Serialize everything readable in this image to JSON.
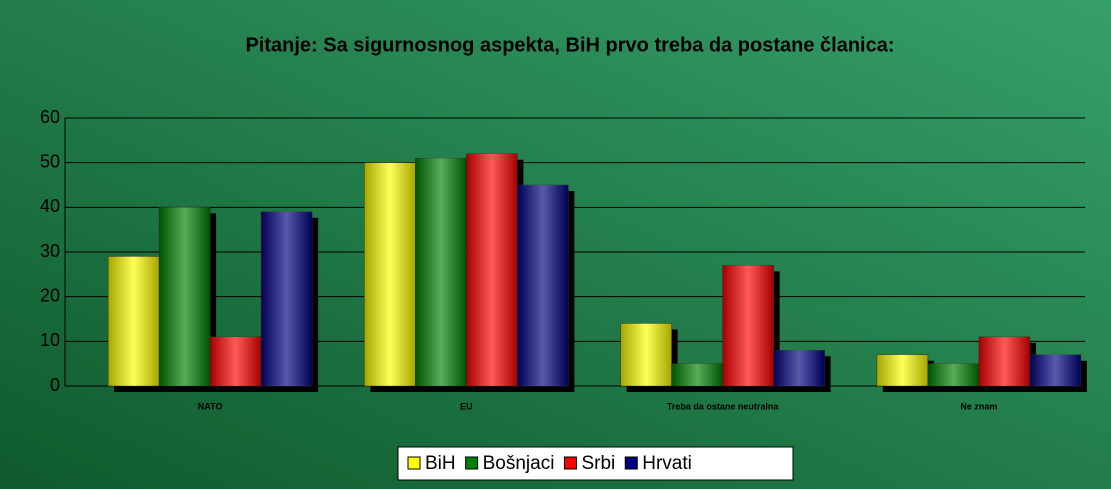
{
  "chart_data": {
    "type": "bar",
    "title": "Pitanje: Sa sigurnosnog aspekta, BiH prvo treba da postane članica:",
    "categories": [
      "NATO",
      "EU",
      "Treba da ostane neutralna",
      "Ne znam"
    ],
    "series": [
      {
        "name": "BiH",
        "color": "#ffff00",
        "values": [
          29,
          50,
          14,
          7
        ]
      },
      {
        "name": "Bošnjaci",
        "color": "#008000",
        "values": [
          40,
          51,
          5,
          5
        ]
      },
      {
        "name": "Srbi",
        "color": "#ff0000",
        "values": [
          11,
          52,
          27,
          11
        ]
      },
      {
        "name": "Hrvati",
        "color": "#000080",
        "values": [
          39,
          45,
          8,
          7
        ]
      }
    ],
    "ylim": [
      0,
      60
    ],
    "yticks": [
      0,
      10,
      20,
      30,
      40,
      50,
      60
    ],
    "grid": true,
    "legend": "bottom"
  }
}
